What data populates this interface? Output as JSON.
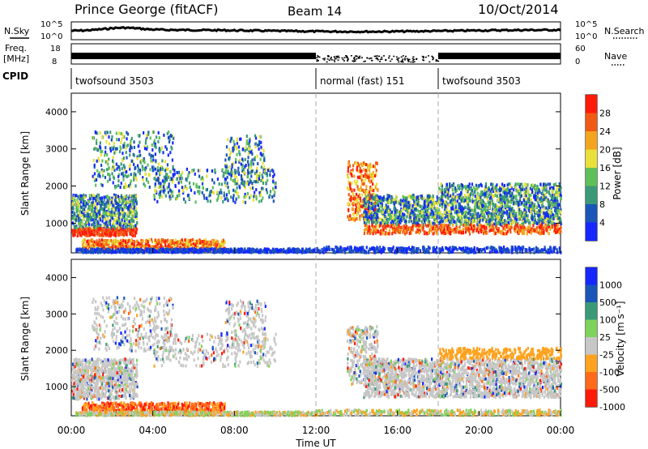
{
  "header": {
    "station": "Prince George (fitACF)",
    "beam": "Beam 14",
    "date": "10/Oct/2014"
  },
  "summary_panels": {
    "nsky_label": "N.Sky",
    "nsearch_label": "N.Search",
    "freq_label": "Freq.",
    "freq_unit": "[MHz]",
    "nave_label": "Nave",
    "cpid_label": "CPID",
    "nsky_ticks": [
      "10^5",
      "10^0"
    ],
    "nsearch_ticks": [
      "10^5",
      "10^0"
    ],
    "freq_ticks": [
      "18",
      "8"
    ],
    "nave_ticks": [
      "60",
      "0"
    ]
  },
  "cpid_segments": [
    {
      "label": "twofsound 3503",
      "start_hr": 0,
      "end_hr": 12.0
    },
    {
      "label": "normal (fast) 151",
      "start_hr": 12.0,
      "end_hr": 18.0
    },
    {
      "label": "twofsound 3503",
      "start_hr": 18.0,
      "end_hr": 24.0
    }
  ],
  "colors": {
    "power": [
      "#1428ff",
      "#1a55b8",
      "#3a9a78",
      "#5fc05a",
      "#e9e03a",
      "#f3a51f",
      "#f05a14",
      "#ff1a0a"
    ],
    "velocity": [
      "#ff1a0a",
      "#ff6a1a",
      "#ffa21f",
      "#c7c7c7",
      "#7fd35a",
      "#3a9a78",
      "#1a55b8",
      "#1428ff"
    ]
  },
  "chart_data": [
    {
      "type": "heatmap",
      "panel": "power",
      "ylabel": "Slant Range [km]",
      "y_ticks": [
        "1000",
        "2000",
        "3000",
        "4000"
      ],
      "ylim": [
        200,
        4500
      ],
      "xlim_hr": [
        0,
        24
      ],
      "colorbar_label": "Power [dB]",
      "colorbar_ticks": [
        "4",
        "8",
        "12",
        "16",
        "20",
        "24",
        "28"
      ]
    },
    {
      "type": "heatmap",
      "panel": "velocity",
      "ylabel": "Slant Range [km]",
      "y_ticks": [
        "1000",
        "2000",
        "3000",
        "4000"
      ],
      "ylim": [
        200,
        4500
      ],
      "xlim_hr": [
        0,
        24
      ],
      "colorbar_label": "Velocity [m s⁻¹]",
      "colorbar_ticks": [
        "1000",
        "500",
        "100",
        "25",
        "-25",
        "-100",
        "-500",
        "-1000"
      ]
    }
  ],
  "x_axis": {
    "ticks": [
      "00:00",
      "04:00",
      "08:00",
      "12:00",
      "16:00",
      "20:00",
      "00:00"
    ],
    "label": "Time UT"
  }
}
